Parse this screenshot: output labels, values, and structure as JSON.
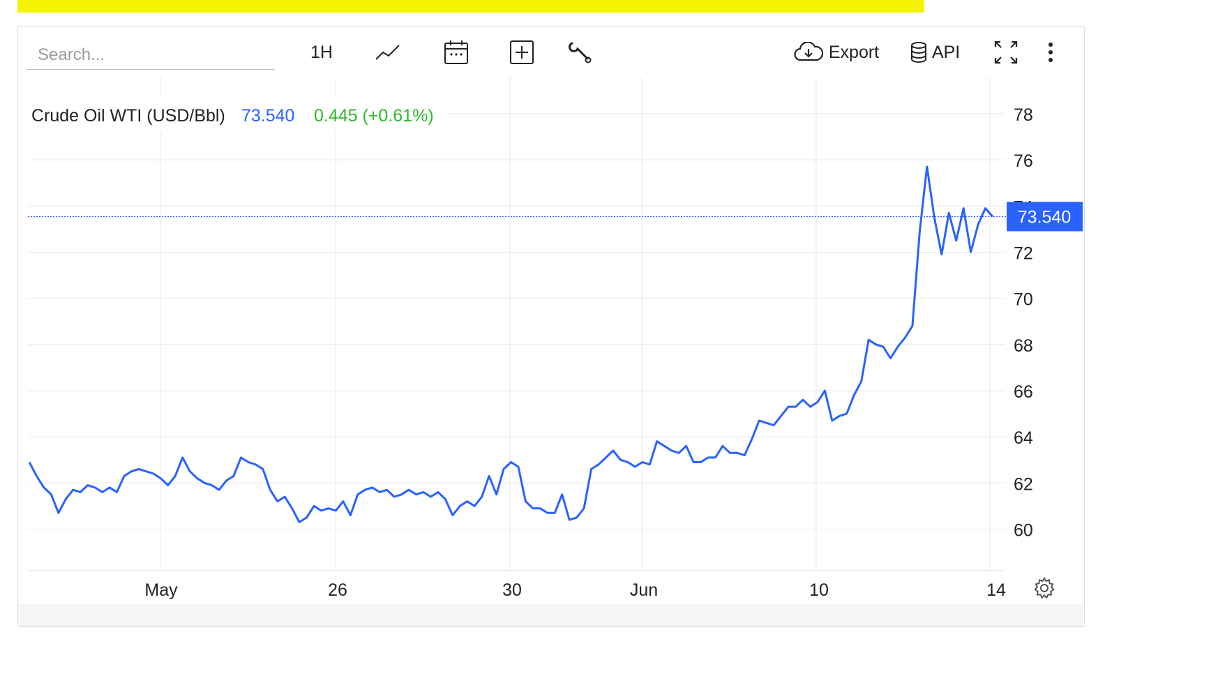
{
  "toolbar": {
    "search_placeholder": "Search...",
    "interval_label": "1H",
    "export_label": "Export",
    "api_label": "API",
    "icons": [
      "line-chart-icon",
      "calendar-icon",
      "plus-box-icon",
      "wrench-icon",
      "cloud-download-icon",
      "database-icon",
      "fullscreen-icon",
      "more-vertical-icon",
      "gear-icon"
    ]
  },
  "header": {
    "name": "Crude Oil WTI (USD/Bbl)",
    "price": "73.540",
    "change": "0.445 (+0.61%)"
  },
  "colors": {
    "line": "#2962ff",
    "change": "#2db928",
    "price_tag_bg": "#2962ff",
    "grid": "#e8e8e8"
  },
  "chart_data": {
    "type": "line",
    "ylim": [
      58.2,
      79.6
    ],
    "y_ticks": [
      60,
      62,
      64,
      66,
      68,
      70,
      72,
      74,
      76,
      78
    ],
    "x_ticks": [
      "May",
      "26",
      "30",
      "Jun",
      "10",
      "14"
    ],
    "grid": true,
    "last_value_label": "73.540",
    "series": [
      {
        "name": "Crude Oil WTI (USD/Bbl)",
        "values": [
          62.9,
          62.3,
          61.8,
          61.5,
          60.7,
          61.3,
          61.7,
          61.6,
          61.9,
          61.8,
          61.6,
          61.8,
          61.6,
          62.3,
          62.5,
          62.6,
          62.5,
          62.4,
          62.2,
          61.9,
          62.3,
          63.1,
          62.5,
          62.2,
          62.0,
          61.9,
          61.7,
          62.1,
          62.3,
          63.1,
          62.9,
          62.8,
          62.6,
          61.7,
          61.2,
          61.4,
          60.9,
          60.3,
          60.5,
          61.0,
          60.8,
          60.9,
          60.8,
          61.2,
          60.6,
          61.5,
          61.7,
          61.8,
          61.6,
          61.7,
          61.4,
          61.5,
          61.7,
          61.5,
          61.6,
          61.4,
          61.6,
          61.3,
          60.6,
          61.0,
          61.2,
          61.0,
          61.4,
          62.3,
          61.5,
          62.6,
          62.9,
          62.7,
          61.2,
          60.9,
          60.9,
          60.7,
          60.7,
          61.5,
          60.4,
          60.5,
          60.9,
          62.6,
          62.8,
          63.1,
          63.4,
          63.0,
          62.9,
          62.7,
          62.9,
          62.8,
          63.8,
          63.6,
          63.4,
          63.3,
          63.6,
          62.9,
          62.9,
          63.1,
          63.1,
          63.6,
          63.3,
          63.3,
          63.2,
          63.9,
          64.7,
          64.6,
          64.5,
          64.9,
          65.3,
          65.3,
          65.6,
          65.3,
          65.5,
          66.0,
          64.7,
          64.9,
          65.0,
          65.8,
          66.4,
          68.2,
          68.0,
          67.9,
          67.4,
          67.9,
          68.3,
          68.8,
          72.9,
          75.7,
          73.5,
          71.9,
          73.7,
          72.5,
          73.9,
          72.0,
          73.2,
          73.9,
          73.54
        ]
      }
    ]
  }
}
